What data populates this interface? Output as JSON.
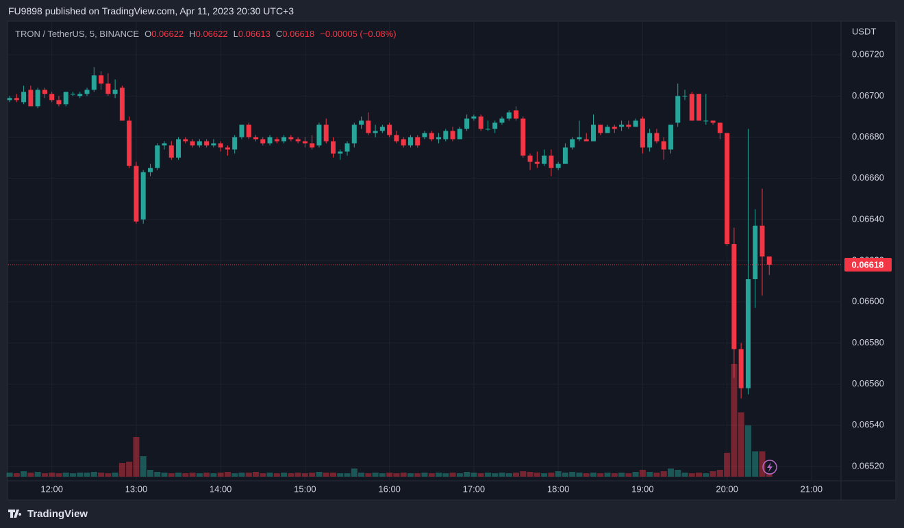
{
  "header": {
    "published": "FU9898 published on TradingView.com, Apr 11, 2023 20:30 UTC+3"
  },
  "footer": {
    "brand": "TradingView"
  },
  "legend": {
    "symbol": "TRON / TetherUS, 5, BINANCE",
    "o_label": "O",
    "o": "0.06622",
    "h_label": "H",
    "h": "0.06622",
    "l_label": "L",
    "l": "0.06613",
    "c_label": "C",
    "c": "0.06618",
    "change": "−0.00005 (−0.08%)"
  },
  "chart_data": {
    "type": "candlestick",
    "y_axis_label": "USDT",
    "up_color": "#26a69a",
    "down_color": "#f23645",
    "grid": true,
    "ylim": [
      0.06513,
      0.06736
    ],
    "yticks": [
      {
        "value": 0.0672,
        "label": "0.06720"
      },
      {
        "value": 0.067,
        "label": "0.06700"
      },
      {
        "value": 0.0668,
        "label": "0.06680"
      },
      {
        "value": 0.0666,
        "label": "0.06660"
      },
      {
        "value": 0.0664,
        "label": "0.06640"
      },
      {
        "value": 0.0662,
        "label": "0.06620"
      },
      {
        "value": 0.066,
        "label": "0.06600"
      },
      {
        "value": 0.0658,
        "label": "0.06580"
      },
      {
        "value": 0.0656,
        "label": "0.06560"
      },
      {
        "value": 0.0654,
        "label": "0.06540"
      },
      {
        "value": 0.0652,
        "label": "0.06520"
      }
    ],
    "xlim": [
      "11:29",
      "21:21"
    ],
    "xticks": [
      "12:00",
      "13:00",
      "14:00",
      "15:00",
      "16:00",
      "17:00",
      "18:00",
      "19:00",
      "20:00",
      "21:00"
    ],
    "last_price_label": "0.06618",
    "x": [
      "11:30",
      "11:35",
      "11:40",
      "11:45",
      "11:50",
      "11:55",
      "12:00",
      "12:05",
      "12:10",
      "12:15",
      "12:20",
      "12:25",
      "12:30",
      "12:35",
      "12:40",
      "12:45",
      "12:50",
      "12:55",
      "13:00",
      "13:05",
      "13:10",
      "13:15",
      "13:20",
      "13:25",
      "13:30",
      "13:35",
      "13:40",
      "13:45",
      "13:50",
      "13:55",
      "14:00",
      "14:05",
      "14:10",
      "14:15",
      "14:20",
      "14:25",
      "14:30",
      "14:35",
      "14:40",
      "14:45",
      "14:50",
      "14:55",
      "15:00",
      "15:05",
      "15:10",
      "15:15",
      "15:20",
      "15:25",
      "15:30",
      "15:35",
      "15:40",
      "15:45",
      "15:50",
      "15:55",
      "16:00",
      "16:05",
      "16:10",
      "16:15",
      "16:20",
      "16:25",
      "16:30",
      "16:35",
      "16:40",
      "16:45",
      "16:50",
      "16:55",
      "17:00",
      "17:05",
      "17:10",
      "17:15",
      "17:20",
      "17:25",
      "17:30",
      "17:35",
      "17:40",
      "17:45",
      "17:50",
      "17:55",
      "18:00",
      "18:05",
      "18:10",
      "18:15",
      "18:20",
      "18:25",
      "18:30",
      "18:35",
      "18:40",
      "18:45",
      "18:50",
      "18:55",
      "19:00",
      "19:05",
      "19:10",
      "19:15",
      "19:20",
      "19:25",
      "19:30",
      "19:35",
      "19:40",
      "19:45",
      "19:50",
      "19:55",
      "20:00",
      "20:05",
      "20:10",
      "20:15",
      "20:20",
      "20:25",
      "20:30"
    ],
    "open": [
      0.06698,
      0.06699,
      0.06697,
      0.06703,
      0.06695,
      0.06703,
      0.06701,
      0.06698,
      0.06696,
      0.06701,
      0.067,
      0.06701,
      0.06703,
      0.0671,
      0.06706,
      0.06701,
      0.06704,
      0.06688,
      0.06666,
      0.0664,
      0.06663,
      0.06665,
      0.06676,
      0.06676,
      0.0667,
      0.06679,
      0.06678,
      0.06676,
      0.06678,
      0.06676,
      0.06677,
      0.06675,
      0.06674,
      0.0668,
      0.06686,
      0.0668,
      0.06679,
      0.06677,
      0.06679,
      0.06678,
      0.0668,
      0.06679,
      0.06678,
      0.06677,
      0.06676,
      0.06686,
      0.06678,
      0.06672,
      0.06673,
      0.06677,
      0.06686,
      0.06688,
      0.06682,
      0.06683,
      0.06686,
      0.06681,
      0.06679,
      0.06676,
      0.0668,
      0.0668,
      0.06682,
      0.06679,
      0.06679,
      0.06683,
      0.06679,
      0.06684,
      0.06689,
      0.0669,
      0.06684,
      0.06684,
      0.06687,
      0.06689,
      0.06693,
      0.06689,
      0.06671,
      0.06668,
      0.06667,
      0.06671,
      0.06665,
      0.06667,
      0.06675,
      0.06679,
      0.06679,
      0.06678,
      0.06686,
      0.06682,
      0.06685,
      0.06685,
      0.06686,
      0.06685,
      0.06689,
      0.06675,
      0.06682,
      0.06678,
      0.06674,
      0.06687,
      0.067,
      0.06701,
      0.06701,
      0.06688,
      0.06688,
      0.06687,
      0.06682,
      0.06628,
      0.06577,
      0.06558,
      0.06611,
      0.06637,
      0.06622
    ],
    "high": [
      0.067,
      0.06701,
      0.06705,
      0.06705,
      0.06704,
      0.06704,
      0.06702,
      0.067,
      0.06702,
      0.06702,
      0.06702,
      0.06704,
      0.06714,
      0.06712,
      0.06711,
      0.06708,
      0.06705,
      0.0669,
      0.06668,
      0.06664,
      0.06667,
      0.06677,
      0.06678,
      0.06678,
      0.0668,
      0.0668,
      0.06679,
      0.06679,
      0.06679,
      0.06679,
      0.06678,
      0.06676,
      0.06681,
      0.06686,
      0.06687,
      0.06681,
      0.0668,
      0.06681,
      0.0668,
      0.06681,
      0.06681,
      0.0668,
      0.0668,
      0.06681,
      0.06687,
      0.06689,
      0.0668,
      0.06674,
      0.06678,
      0.06687,
      0.0669,
      0.06692,
      0.06686,
      0.06686,
      0.06687,
      0.06683,
      0.0668,
      0.06681,
      0.06681,
      0.06683,
      0.06683,
      0.06682,
      0.06684,
      0.06685,
      0.06685,
      0.06691,
      0.06691,
      0.06691,
      0.06688,
      0.06688,
      0.0669,
      0.06693,
      0.06695,
      0.0669,
      0.06672,
      0.06673,
      0.06674,
      0.06674,
      0.06668,
      0.06677,
      0.0668,
      0.06688,
      0.06682,
      0.06691,
      0.06686,
      0.06686,
      0.06686,
      0.06688,
      0.06688,
      0.06689,
      0.0669,
      0.06684,
      0.06684,
      0.0668,
      0.06686,
      0.06706,
      0.06703,
      0.06702,
      0.06701,
      0.06701,
      0.06688,
      0.06687,
      0.06682,
      0.06636,
      0.0658,
      0.06684,
      0.06645,
      0.06655,
      0.06622
    ],
    "low": [
      0.06697,
      0.06697,
      0.06696,
      0.06695,
      0.06694,
      0.06699,
      0.06697,
      0.06695,
      0.06695,
      0.067,
      0.06699,
      0.067,
      0.06702,
      0.06703,
      0.067,
      0.06699,
      0.06688,
      0.06665,
      0.06638,
      0.06638,
      0.06661,
      0.06664,
      0.06674,
      0.06669,
      0.06669,
      0.06677,
      0.06675,
      0.06675,
      0.06675,
      0.06675,
      0.06673,
      0.06671,
      0.06672,
      0.06679,
      0.06679,
      0.06678,
      0.06676,
      0.06676,
      0.06677,
      0.06677,
      0.06678,
      0.06677,
      0.06675,
      0.06674,
      0.06675,
      0.06677,
      0.0667,
      0.06669,
      0.06671,
      0.06675,
      0.06684,
      0.06681,
      0.0668,
      0.06682,
      0.0668,
      0.06677,
      0.06675,
      0.06675,
      0.06675,
      0.06679,
      0.06678,
      0.06677,
      0.06678,
      0.06678,
      0.06679,
      0.06683,
      0.06688,
      0.06683,
      0.06683,
      0.06682,
      0.06686,
      0.06688,
      0.06688,
      0.0667,
      0.06664,
      0.06665,
      0.06666,
      0.06661,
      0.06664,
      0.06667,
      0.06674,
      0.06678,
      0.06678,
      0.06678,
      0.06681,
      0.06682,
      0.06682,
      0.06683,
      0.06684,
      0.06685,
      0.06672,
      0.06673,
      0.06677,
      0.06669,
      0.06672,
      0.06685,
      0.06698,
      0.06688,
      0.06688,
      0.06686,
      0.06686,
      0.06679,
      0.06627,
      0.06563,
      0.06553,
      0.06555,
      0.06597,
      0.06603,
      0.06613
    ],
    "close": [
      0.06699,
      0.06698,
      0.06702,
      0.06695,
      0.06703,
      0.06701,
      0.06698,
      0.06696,
      0.06702,
      0.06701,
      0.06701,
      0.06703,
      0.0671,
      0.06706,
      0.06701,
      0.06703,
      0.06688,
      0.06666,
      0.06639,
      0.06663,
      0.06665,
      0.06676,
      0.06677,
      0.0667,
      0.06679,
      0.06678,
      0.06676,
      0.06678,
      0.06676,
      0.06677,
      0.06675,
      0.06674,
      0.0668,
      0.06686,
      0.0668,
      0.06679,
      0.06677,
      0.0668,
      0.06678,
      0.0668,
      0.06679,
      0.06678,
      0.06677,
      0.06675,
      0.06686,
      0.06678,
      0.06672,
      0.06673,
      0.06677,
      0.06686,
      0.06688,
      0.06682,
      0.06683,
      0.06685,
      0.06681,
      0.06678,
      0.06676,
      0.0668,
      0.06676,
      0.06682,
      0.06679,
      0.0668,
      0.06683,
      0.06679,
      0.06684,
      0.06689,
      0.0669,
      0.06684,
      0.06684,
      0.06687,
      0.06689,
      0.06692,
      0.06689,
      0.06671,
      0.06668,
      0.06667,
      0.06671,
      0.06665,
      0.06667,
      0.06675,
      0.06679,
      0.0668,
      0.06678,
      0.06686,
      0.06682,
      0.06685,
      0.06684,
      0.06686,
      0.06685,
      0.06688,
      0.06675,
      0.06682,
      0.06678,
      0.06674,
      0.06686,
      0.067,
      0.067,
      0.06688,
      0.06688,
      0.06688,
      0.06687,
      0.06682,
      0.06628,
      0.06577,
      0.06558,
      0.06611,
      0.06637,
      0.06622,
      0.06618
    ],
    "volume": [
      6,
      5,
      8,
      6,
      7,
      5,
      6,
      5,
      6,
      5,
      6,
      6,
      7,
      6,
      5,
      6,
      20,
      22,
      58,
      30,
      10,
      7,
      6,
      5,
      6,
      5,
      6,
      5,
      6,
      5,
      6,
      7,
      5,
      6,
      6,
      7,
      5,
      6,
      5,
      6,
      5,
      6,
      5,
      6,
      7,
      6,
      6,
      5,
      5,
      12,
      6,
      5,
      6,
      5,
      6,
      5,
      6,
      5,
      5,
      6,
      5,
      6,
      5,
      6,
      5,
      7,
      6,
      5,
      6,
      5,
      6,
      5,
      6,
      8,
      7,
      6,
      5,
      6,
      8,
      6,
      7,
      6,
      5,
      6,
      5,
      6,
      5,
      6,
      5,
      7,
      10,
      7,
      6,
      8,
      12,
      10,
      6,
      5,
      6,
      5,
      8,
      10,
      35,
      165,
      94,
      75,
      37,
      37,
      5
    ]
  }
}
